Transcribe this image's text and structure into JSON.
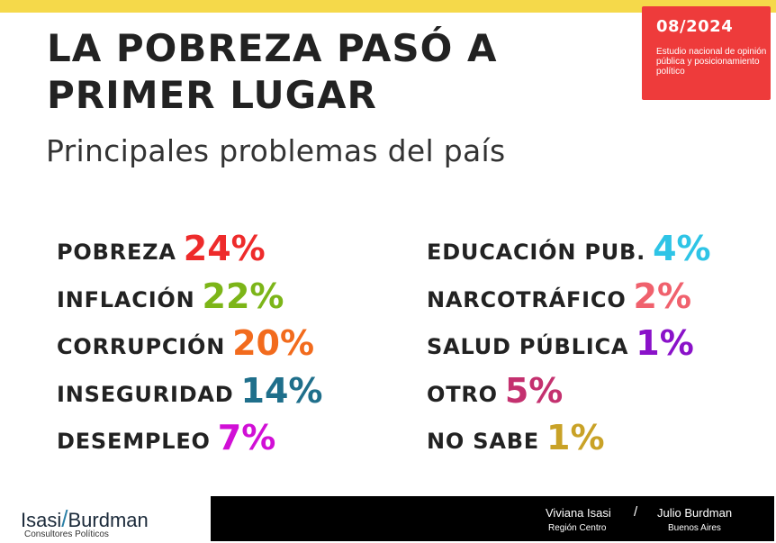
{
  "header": {
    "date": "08/2024",
    "study": "Estudio nacional de opinión pública y posicionamiento político",
    "title": "LA POBREZA PASÓ A PRIMER LUGAR",
    "subtitle": "Principales problemas del país"
  },
  "chart_data": {
    "type": "table",
    "title": "LA POBREZA PASÓ A PRIMER LUGAR",
    "subtitle": "Principales problemas del país",
    "categories": [
      "POBREZA",
      "INFLACIÓN",
      "CORRUPCIÓN",
      "INSEGURIDAD",
      "DESEMPLEO",
      "EDUCACIÓN PUB.",
      "NARCOTRÁFICO",
      "SALUD PÚBLICA",
      "OTRO",
      "NO SABE"
    ],
    "values": [
      24,
      22,
      20,
      14,
      7,
      4,
      2,
      1,
      5,
      1
    ],
    "labels": [
      "24%",
      "22%",
      "20%",
      "14%",
      "7%",
      "4%",
      "2%",
      "1%",
      "5%",
      "1%"
    ],
    "colors": [
      "#ee2b2b",
      "#7cb518",
      "#f26b1d",
      "#1f6f8b",
      "#d10fd6",
      "#2ec4e6",
      "#f0616d",
      "#8a12c9",
      "#c4316f",
      "#c9a227"
    ],
    "unit": "%"
  },
  "footer": {
    "brand_left": "Isasi",
    "brand_slash": "/",
    "brand_right": "Burdman",
    "brand_sub": "Consultores Políticos",
    "person1": "Viviana Isasi",
    "region1": "Región Centro",
    "separator": "/",
    "person2": "Julio Burdman",
    "region2": "Buenos Aires"
  }
}
